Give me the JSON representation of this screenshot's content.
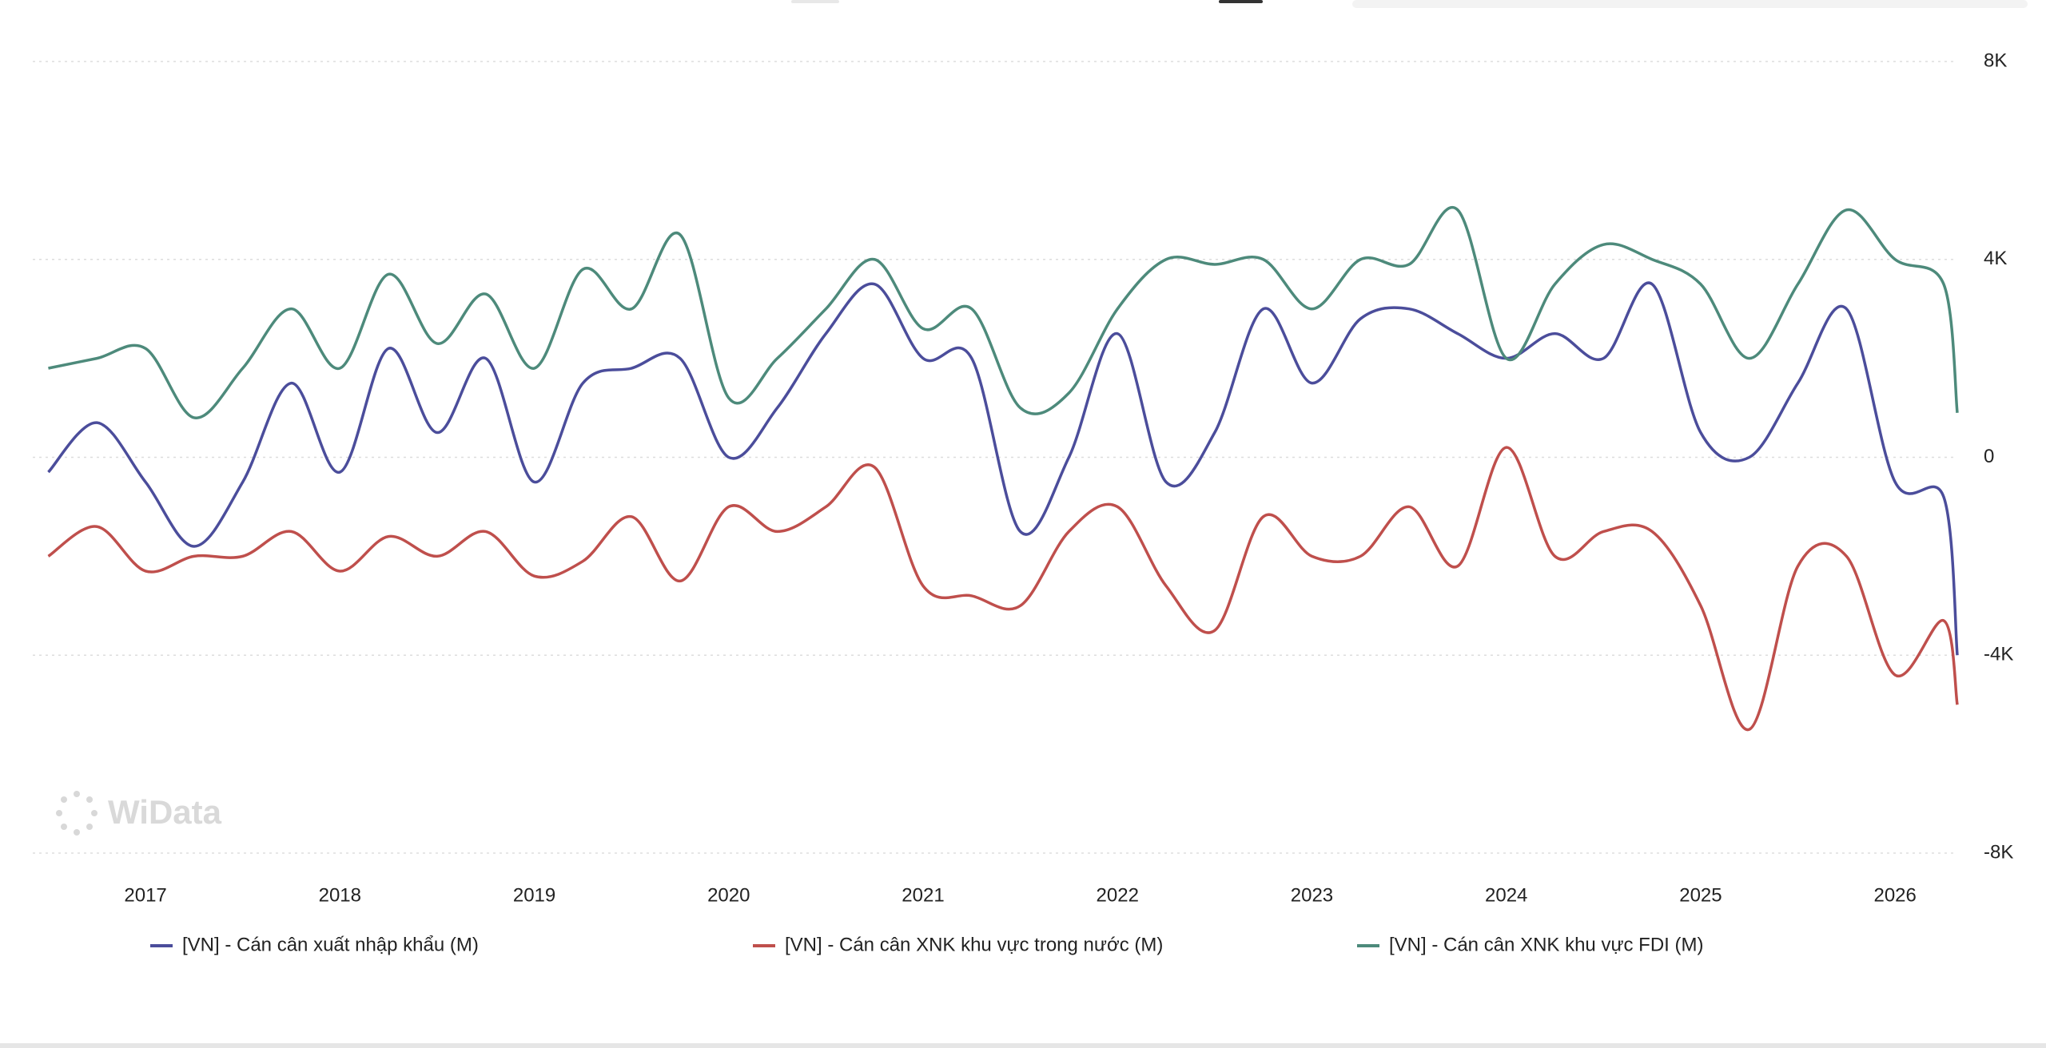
{
  "chart_data": {
    "type": "line",
    "watermark": "WiData",
    "x": [
      2016.5,
      2016.75,
      2017.0,
      2017.25,
      2017.5,
      2017.75,
      2018.0,
      2018.25,
      2018.5,
      2018.75,
      2019.0,
      2019.25,
      2019.5,
      2019.75,
      2020.0,
      2020.25,
      2020.5,
      2020.75,
      2021.0,
      2021.25,
      2021.5,
      2021.75,
      2022.0,
      2022.25,
      2022.5,
      2022.75,
      2023.0,
      2023.25,
      2023.5,
      2023.75,
      2024.0,
      2024.25,
      2024.5,
      2024.75,
      2025.0,
      2025.25,
      2025.5,
      2025.75,
      2026.0,
      2026.25,
      2026.32
    ],
    "series": [
      {
        "name": "[VN] - Cán cân xuất nhập khẩu (M)",
        "color": "#4b4d9b",
        "values": [
          -300,
          700,
          -500,
          -1800,
          -500,
          1500,
          -300,
          2200,
          500,
          2000,
          -500,
          1500,
          1800,
          2000,
          0,
          1000,
          2500,
          3500,
          2000,
          2000,
          -1500,
          0,
          2500,
          -500,
          500,
          3000,
          1500,
          2800,
          3000,
          2500,
          2000,
          2500,
          2000,
          3500,
          500,
          0,
          1500,
          3000,
          -500,
          -800,
          -4000
        ]
      },
      {
        "name": "[VN] - Cán cân XNK khu vực trong nước (M)",
        "color": "#bf4f4c",
        "values": [
          -2000,
          -1400,
          -2300,
          -2000,
          -2000,
          -1500,
          -2300,
          -1600,
          -2000,
          -1500,
          -2400,
          -2100,
          -1200,
          -2500,
          -1000,
          -1500,
          -1000,
          -200,
          -2600,
          -2800,
          -3000,
          -1500,
          -1000,
          -2600,
          -3500,
          -1200,
          -2000,
          -2000,
          -1000,
          -2200,
          200,
          -2000,
          -1500,
          -1500,
          -3000,
          -5500,
          -2200,
          -2000,
          -4400,
          -3300,
          -5000
        ]
      },
      {
        "name": "[VN] - Cán cân XNK khu vực FDI (M)",
        "color": "#4d8a7b",
        "values": [
          1800,
          2000,
          2200,
          800,
          1800,
          3000,
          1800,
          3700,
          2300,
          3300,
          1800,
          3800,
          3000,
          4500,
          1200,
          2000,
          3000,
          4000,
          2600,
          3000,
          1000,
          1300,
          3000,
          4000,
          3900,
          4000,
          3000,
          4000,
          3900,
          5000,
          2000,
          3500,
          4300,
          4000,
          3500,
          2000,
          3500,
          5000,
          4000,
          3500,
          900
        ]
      }
    ],
    "xlim": [
      2016.42,
      2026.32
    ],
    "xticks": [
      2017,
      2018,
      2019,
      2020,
      2021,
      2022,
      2023,
      2024,
      2025,
      2026
    ],
    "ylim": [
      -8000,
      8000
    ],
    "yticks": [
      {
        "value": -8000,
        "label": "-8K"
      },
      {
        "value": -4000,
        "label": "-4K"
      },
      0,
      {
        "value": 4000,
        "label": "4K"
      },
      {
        "value": 8000,
        "label": "8K"
      }
    ],
    "grid": true
  }
}
